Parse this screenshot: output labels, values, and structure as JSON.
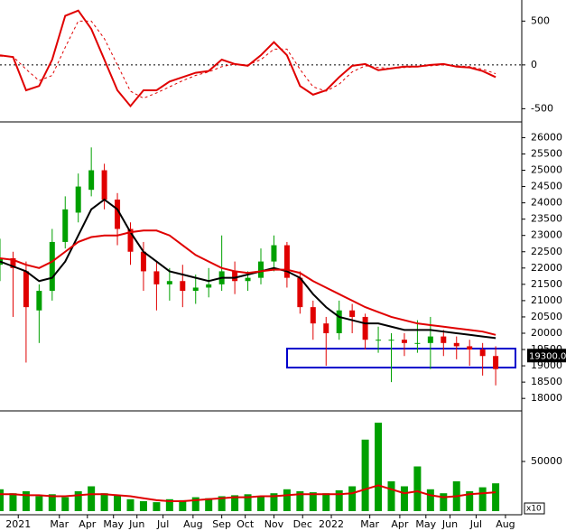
{
  "chart_data": [
    {
      "type": "line",
      "x": [
        0,
        2,
        4,
        6,
        8,
        10,
        12,
        14,
        16,
        18,
        20,
        22,
        24,
        26,
        28,
        30,
        32,
        34,
        36,
        38,
        40,
        42,
        44,
        46,
        48,
        50,
        52,
        54,
        56,
        58,
        60,
        62,
        64,
        66,
        68,
        70,
        72,
        74,
        76
      ],
      "series": [
        {
          "color": "#e00000",
          "style": "solid",
          "values": [
            110,
            90,
            -290,
            -240,
            60,
            560,
            620,
            410,
            60,
            -290,
            -470,
            -290,
            -290,
            -190,
            -140,
            -90,
            -70,
            60,
            10,
            -10,
            110,
            260,
            110,
            -240,
            -340,
            -290,
            -140,
            -10,
            10,
            -60,
            -40,
            -20,
            -20,
            0,
            10,
            -20,
            -30,
            -70,
            -140
          ]
        },
        {
          "color": "#e00000",
          "style": "dashed",
          "values": [
            100,
            95,
            -50,
            -180,
            -120,
            200,
            500,
            500,
            300,
            0,
            -300,
            -380,
            -320,
            -250,
            -180,
            -120,
            -80,
            -20,
            10,
            0,
            60,
            180,
            180,
            -50,
            -250,
            -300,
            -220,
            -80,
            -10,
            -30,
            -40,
            -30,
            -20,
            -10,
            0,
            -10,
            -20,
            -50,
            -100
          ]
        }
      ],
      "xlim": [
        0,
        80
      ],
      "ylim": [
        -630,
        720
      ],
      "yticks": [
        500,
        0,
        -500
      ]
    },
    {
      "type": "candlestick",
      "x": [
        0,
        2,
        4,
        6,
        8,
        10,
        12,
        14,
        16,
        18,
        20,
        22,
        24,
        26,
        28,
        30,
        32,
        34,
        36,
        38,
        40,
        42,
        44,
        46,
        48,
        50,
        52,
        54,
        56,
        58,
        60,
        62,
        64,
        66,
        68,
        70,
        72,
        74,
        76
      ],
      "open": [
        22100,
        22300,
        21900,
        20700,
        21300,
        22800,
        23700,
        24400,
        25000,
        24100,
        23200,
        22500,
        21900,
        21500,
        21600,
        21300,
        21400,
        21500,
        21900,
        21600,
        21700,
        22200,
        22700,
        21700,
        20800,
        20300,
        20000,
        20700,
        20500,
        19800,
        19800,
        19800,
        19700,
        19700,
        19900,
        19700,
        19600,
        19500,
        19300
      ],
      "high": [
        22900,
        22500,
        22200,
        21500,
        23200,
        24200,
        24900,
        25700,
        25200,
        24300,
        23400,
        22800,
        22200,
        22000,
        22100,
        21800,
        22000,
        23000,
        22200,
        21900,
        22600,
        23000,
        22800,
        21900,
        21000,
        20500,
        21000,
        20900,
        20600,
        20200,
        20000,
        20000,
        20400,
        20500,
        20100,
        19900,
        19800,
        19700,
        19600
      ],
      "low": [
        21600,
        20500,
        19100,
        19700,
        21000,
        22600,
        23400,
        24200,
        23800,
        22700,
        22100,
        21300,
        20700,
        21000,
        20800,
        20900,
        21100,
        21300,
        21200,
        21300,
        21500,
        21900,
        21400,
        20600,
        19800,
        19000,
        19800,
        20000,
        19500,
        19400,
        18500,
        19300,
        19400,
        18900,
        19300,
        19200,
        19000,
        18700,
        18400
      ],
      "close": [
        22300,
        22000,
        20800,
        21300,
        22800,
        23800,
        24500,
        25000,
        24100,
        23200,
        22500,
        21900,
        21500,
        21600,
        21300,
        21400,
        21500,
        21900,
        21600,
        21700,
        22200,
        22700,
        21700,
        20800,
        20300,
        20000,
        20700,
        20500,
        19800,
        19800,
        19800,
        19700,
        19700,
        19900,
        19700,
        19600,
        19500,
        19300,
        18900
      ],
      "up_color": "#00a000",
      "down_color": "#e00000",
      "series": [
        {
          "color": "#000000",
          "values": [
            22200,
            22050,
            21900,
            21600,
            21700,
            22200,
            23000,
            23800,
            24100,
            23800,
            23100,
            22500,
            22200,
            21900,
            21800,
            21700,
            21600,
            21700,
            21700,
            21800,
            21900,
            22000,
            21900,
            21700,
            21200,
            20800,
            20500,
            20400,
            20300,
            20300,
            20200,
            20100,
            20100,
            20100,
            20050,
            20000,
            19950,
            19900,
            19850
          ]
        },
        {
          "color": "#e00000",
          "values": [
            22300,
            22250,
            22100,
            22000,
            22200,
            22500,
            22800,
            22950,
            23000,
            23000,
            23100,
            23150,
            23150,
            23000,
            22700,
            22400,
            22200,
            22000,
            21900,
            21850,
            21900,
            21950,
            21950,
            21850,
            21600,
            21400,
            21200,
            21000,
            20800,
            20650,
            20500,
            20400,
            20300,
            20250,
            20200,
            20150,
            20100,
            20050,
            19950
          ]
        }
      ],
      "price_marker": {
        "value": 19300,
        "label": "19300.00"
      },
      "xlim": [
        0,
        80
      ],
      "ylim": [
        17700,
        26400
      ],
      "yticks": [
        18000,
        18500,
        19000,
        19500,
        20000,
        20500,
        21000,
        21500,
        22000,
        22500,
        23000,
        23500,
        24000,
        24500,
        25000,
        25500,
        26000
      ]
    },
    {
      "type": "bar",
      "x": [
        0,
        2,
        4,
        6,
        8,
        10,
        12,
        14,
        16,
        18,
        20,
        22,
        24,
        26,
        28,
        30,
        32,
        34,
        36,
        38,
        40,
        42,
        44,
        46,
        48,
        50,
        52,
        54,
        56,
        58,
        60,
        62,
        64,
        66,
        68,
        70,
        72,
        74,
        76
      ],
      "color": "#00a000",
      "values": [
        22000,
        18000,
        20000,
        15000,
        17000,
        14000,
        20000,
        25000,
        18000,
        16000,
        12000,
        10000,
        9000,
        12000,
        11000,
        14000,
        13000,
        15000,
        16000,
        17000,
        15000,
        18000,
        22000,
        20000,
        19000,
        18000,
        21000,
        25000,
        72000,
        89000,
        30000,
        25000,
        45000,
        22000,
        18000,
        30000,
        20000,
        24000,
        28000
      ],
      "series": [
        {
          "color": "#e00000",
          "values": [
            17000,
            17000,
            16000,
            16000,
            15000,
            15000,
            16000,
            17000,
            17000,
            16000,
            15000,
            13000,
            11000,
            10000,
            10000,
            11000,
            12000,
            13000,
            14000,
            14000,
            15000,
            15000,
            16000,
            17000,
            17000,
            17000,
            17000,
            18000,
            22000,
            26000,
            22000,
            18000,
            20000,
            16000,
            14000,
            15000,
            17000,
            18000,
            19000
          ]
        }
      ],
      "volume_unit": "x10",
      "xlim": [
        0,
        80
      ],
      "ylim": [
        0,
        100000
      ],
      "yticks": [
        50000
      ],
      "xticks": [
        {
          "value": 2.8,
          "label": "2021"
        },
        {
          "value": 9.1,
          "label": "Mar"
        },
        {
          "value": 13.4,
          "label": "Apr"
        },
        {
          "value": 17.4,
          "label": "May"
        },
        {
          "value": 21,
          "label": "Jun"
        },
        {
          "value": 25,
          "label": "Jul"
        },
        {
          "value": 29.6,
          "label": "Aug"
        },
        {
          "value": 34,
          "label": "Sep"
        },
        {
          "value": 37.6,
          "label": "Oct"
        },
        {
          "value": 42,
          "label": "Nov"
        },
        {
          "value": 46.4,
          "label": "Dec"
        },
        {
          "value": 50.8,
          "label": "2022"
        },
        {
          "value": 56.7,
          "label": "Mar"
        },
        {
          "value": 61.3,
          "label": "Apr"
        },
        {
          "value": 65.3,
          "label": "May"
        },
        {
          "value": 69,
          "label": "Jun"
        },
        {
          "value": 73,
          "label": "Jul"
        },
        {
          "value": 77.5,
          "label": "Aug"
        }
      ]
    }
  ]
}
